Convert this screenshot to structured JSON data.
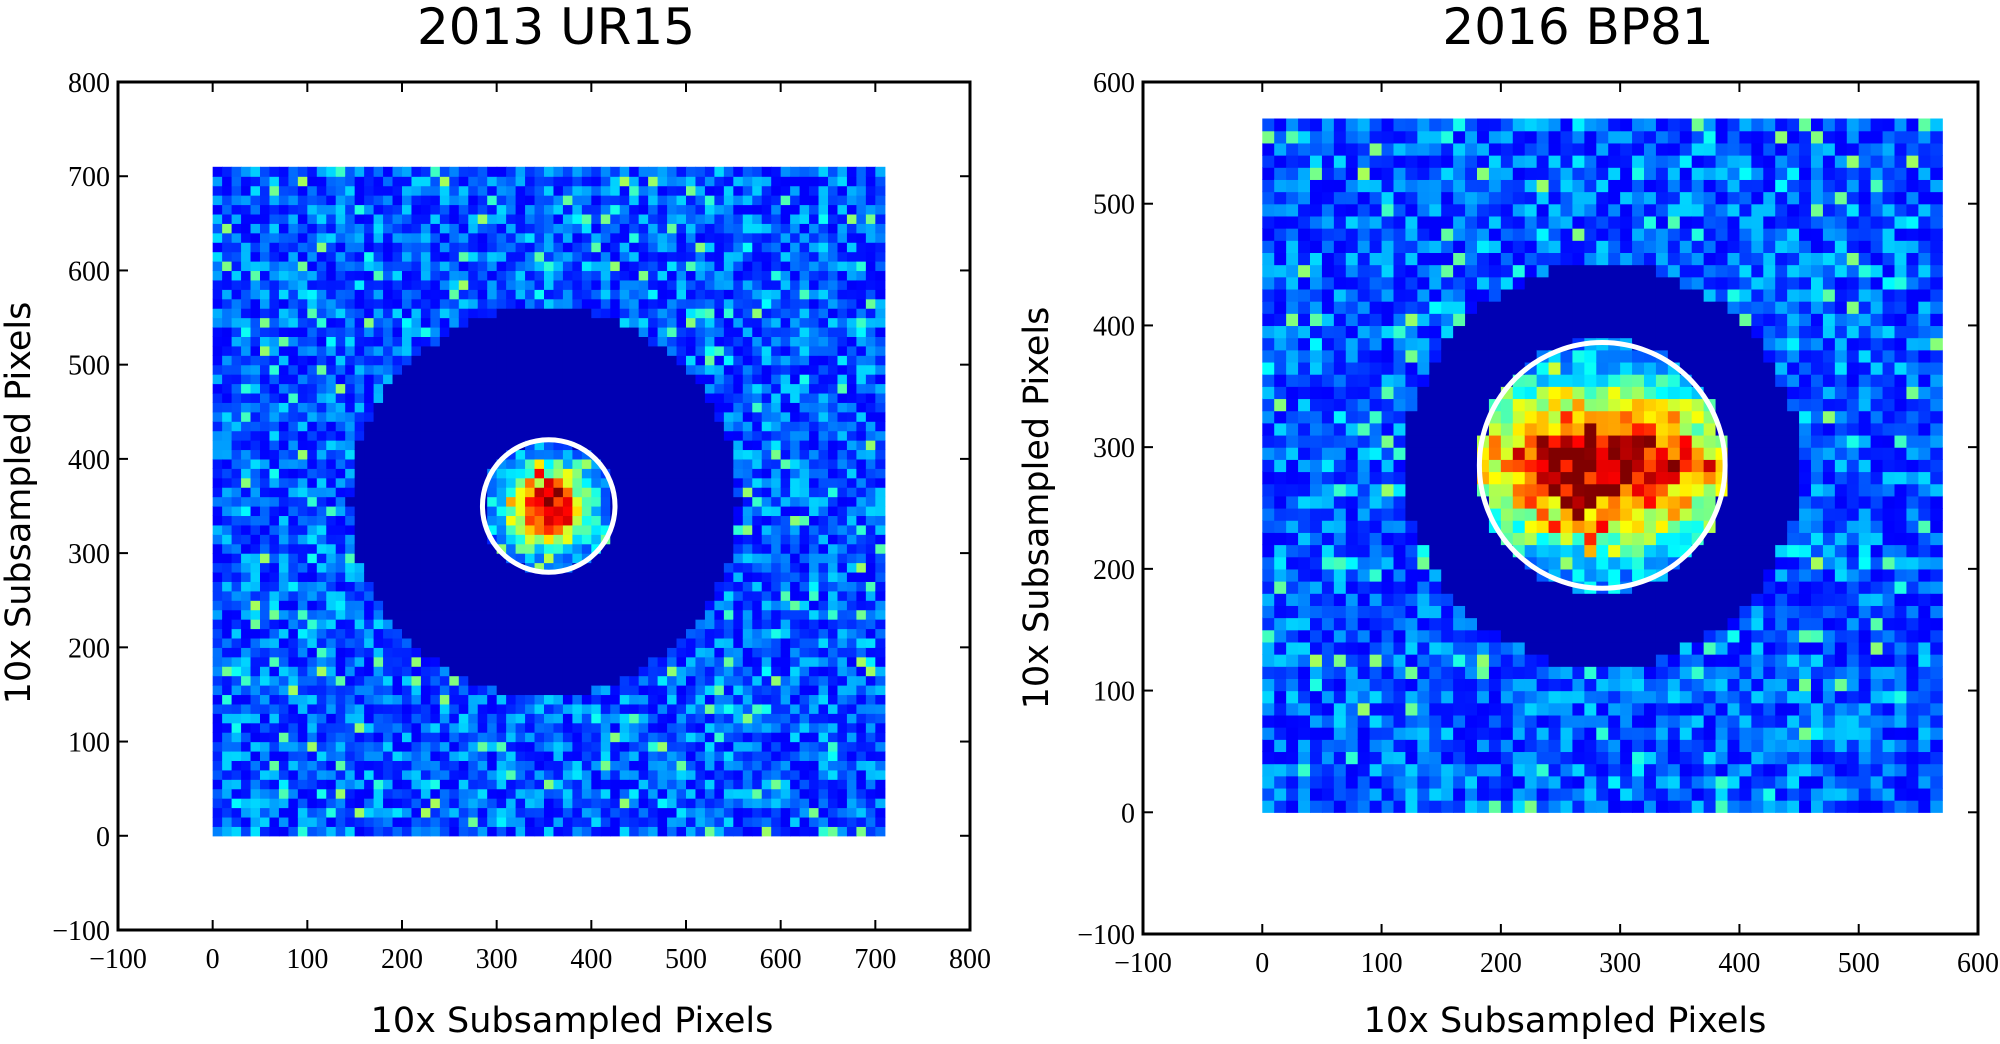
{
  "chart_data": [
    {
      "type": "heatmap",
      "title": "2013 UR15",
      "xlabel": "10x Subsampled Pixels",
      "ylabel": "10x Subsampled Pixels",
      "xlim": [
        -100,
        800
      ],
      "ylim": [
        -100,
        800
      ],
      "xticks": [
        -100,
        0,
        100,
        200,
        300,
        400,
        500,
        600,
        700,
        800
      ],
      "yticks": [
        -100,
        0,
        100,
        200,
        300,
        400,
        500,
        600,
        700,
        800
      ],
      "tick_labels_x": [
        "−100",
        "0",
        "100",
        "200",
        "300",
        "400",
        "500",
        "600",
        "700",
        "800"
      ],
      "tick_labels_y": [
        "−100",
        "0",
        "100",
        "200",
        "300",
        "400",
        "500",
        "600",
        "700",
        "800"
      ],
      "image_extent": [
        0,
        710,
        0,
        710
      ],
      "cell_size": 10,
      "colormap": "jet",
      "masked_annulus": {
        "center": [
          350,
          355
        ],
        "radius": 205
      },
      "aperture_circle": {
        "center": [
          355,
          350
        ],
        "radius": 70,
        "color": "#ffffff"
      },
      "source_peak": {
        "center": [
          355,
          350
        ]
      },
      "grid": false
    },
    {
      "type": "heatmap",
      "title": "2016 BP81",
      "xlabel": "10x Subsampled Pixels",
      "ylabel": "10x Subsampled Pixels",
      "xlim": [
        -100,
        600
      ],
      "ylim": [
        -100,
        600
      ],
      "xticks": [
        -100,
        0,
        100,
        200,
        300,
        400,
        500,
        600
      ],
      "yticks": [
        -100,
        0,
        100,
        200,
        300,
        400,
        500,
        600
      ],
      "tick_labels_x": [
        "−100",
        "0",
        "100",
        "200",
        "300",
        "400",
        "500",
        "600"
      ],
      "tick_labels_y": [
        "−100",
        "0",
        "100",
        "200",
        "300",
        "400",
        "500",
        "600"
      ],
      "image_extent": [
        0,
        570,
        0,
        570
      ],
      "cell_size": 10,
      "colormap": "jet",
      "masked_annulus": {
        "center": [
          285,
          285
        ],
        "radius": 165
      },
      "aperture_circle": {
        "center": [
          285,
          285
        ],
        "radius": 103,
        "color": "#ffffff"
      },
      "source_peak": {
        "center": [
          285,
          285
        ]
      },
      "grid": false
    }
  ]
}
